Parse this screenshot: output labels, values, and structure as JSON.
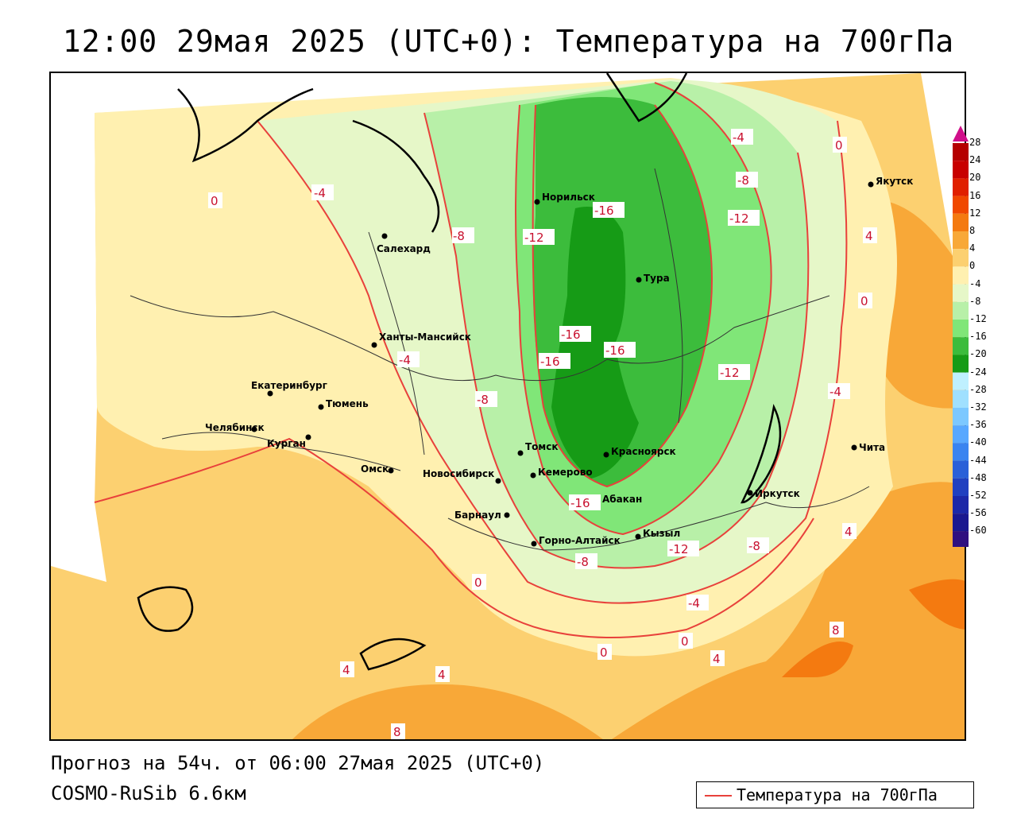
{
  "title": "12:00 29мая 2025 (UTC+0): Температура на 700гПа",
  "forecast_text": "Прогноз на 54ч. от 06:00 27мая 2025 (UTC+0)",
  "model_text": "COSMO-RuSib 6.6км",
  "legend": {
    "label": "Температура на 700гПа",
    "line_color": "#e8413b"
  },
  "color_scale": {
    "levels": [
      "28",
      "24",
      "20",
      "16",
      "12",
      "8",
      "4",
      "0",
      "-4",
      "-8",
      "-12",
      "-16",
      "-20",
      "-24",
      "-28",
      "-32",
      "-36",
      "-40",
      "-44",
      "-48",
      "-52",
      "-56",
      "-60"
    ],
    "colors": [
      "#b50000",
      "#c80000",
      "#e02000",
      "#f04800",
      "#f47a10",
      "#f8a838",
      "#fcd070",
      "#fff0b0",
      "#e6f7c8",
      "#b8f0a8",
      "#80e678",
      "#3cbc3c",
      "#169b16",
      "#bff0ff",
      "#a0e0ff",
      "#7cc8ff",
      "#58a8ff",
      "#3a84f0",
      "#2a60d8",
      "#2040c0",
      "#1c28a8",
      "#1a1890",
      "#301080"
    ]
  },
  "cities": [
    {
      "name": "Норильск"
    },
    {
      "name": "Салехард"
    },
    {
      "name": "Тура"
    },
    {
      "name": "Якутск"
    },
    {
      "name": "Ханты-Мансийск"
    },
    {
      "name": "Екатеринбург"
    },
    {
      "name": "Тюмень"
    },
    {
      "name": "Челябинск"
    },
    {
      "name": "Курган"
    },
    {
      "name": "Омск"
    },
    {
      "name": "Новосибирск"
    },
    {
      "name": "Томск"
    },
    {
      "name": "Кемерово"
    },
    {
      "name": "Красноярск"
    },
    {
      "name": "Барнаул"
    },
    {
      "name": "Абакан"
    },
    {
      "name": "Горно-Алтайск"
    },
    {
      "name": "Кызыл"
    },
    {
      "name": "Иркутск"
    },
    {
      "name": "Чита"
    }
  ],
  "contour_labels": [
    "0",
    "4",
    "8",
    "-4",
    "-8",
    "-12",
    "-16"
  ]
}
